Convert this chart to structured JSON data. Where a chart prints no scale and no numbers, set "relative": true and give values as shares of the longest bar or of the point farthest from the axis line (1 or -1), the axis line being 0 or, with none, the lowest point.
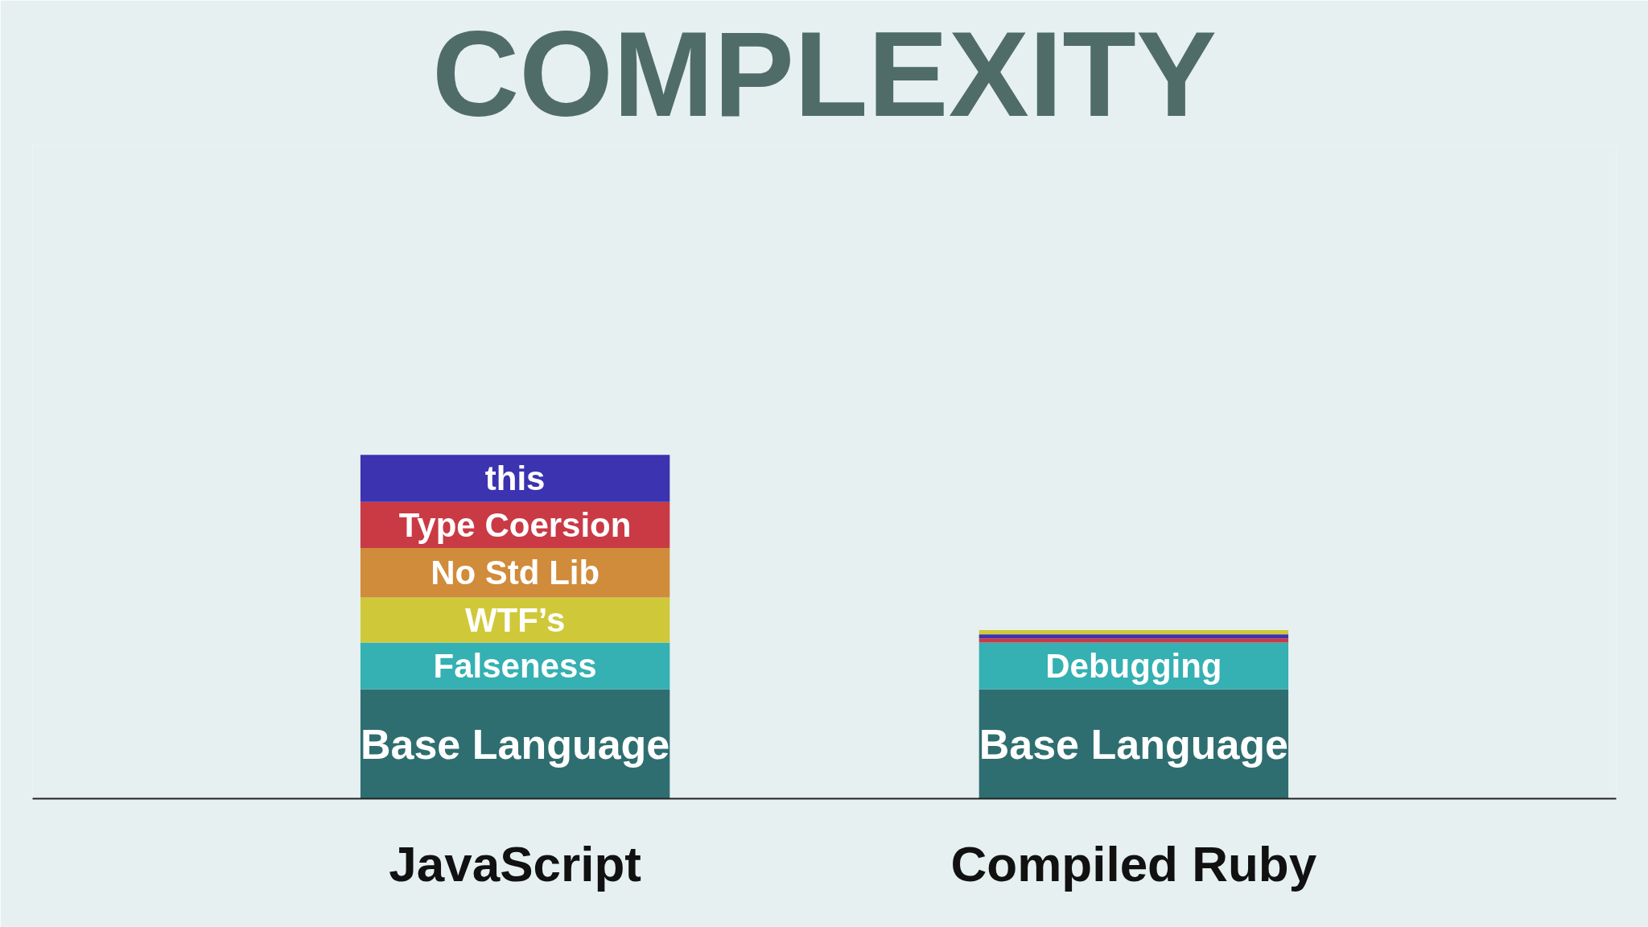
{
  "chart_data": {
    "type": "bar",
    "title": "COMPLEXITY",
    "categories": [
      "JavaScript",
      "Compiled Ruby"
    ],
    "stacked": true,
    "relative": true,
    "legend": false,
    "grid": false,
    "series": [
      {
        "name": "Base Language",
        "color": "#2f6e70",
        "values": [
          0.318,
          0.318
        ]
      },
      {
        "name": "Falseness",
        "color": "#35b0b3",
        "values": [
          0.136,
          null
        ]
      },
      {
        "name": "Debugging",
        "color": "#35b0b3",
        "values": [
          null,
          0.136
        ]
      },
      {
        "name": "WTF’s",
        "color": "#cfc93a",
        "values": [
          0.131,
          null
        ]
      },
      {
        "name": "No Std Lib",
        "color": "#d08b3b",
        "values": [
          0.144,
          null
        ]
      },
      {
        "name": "Type Coersion",
        "color": "#c93a45",
        "values": [
          0.134,
          null
        ]
      },
      {
        "name": "this",
        "color": "#3c33b0",
        "values": [
          0.137,
          null
        ]
      },
      {
        "color": "#c93a45",
        "values": [
          null,
          0.012
        ]
      },
      {
        "color": "#3c33b0",
        "values": [
          null,
          0.012
        ]
      },
      {
        "color": "#cfc93a",
        "values": [
          null,
          0.012
        ]
      }
    ]
  }
}
